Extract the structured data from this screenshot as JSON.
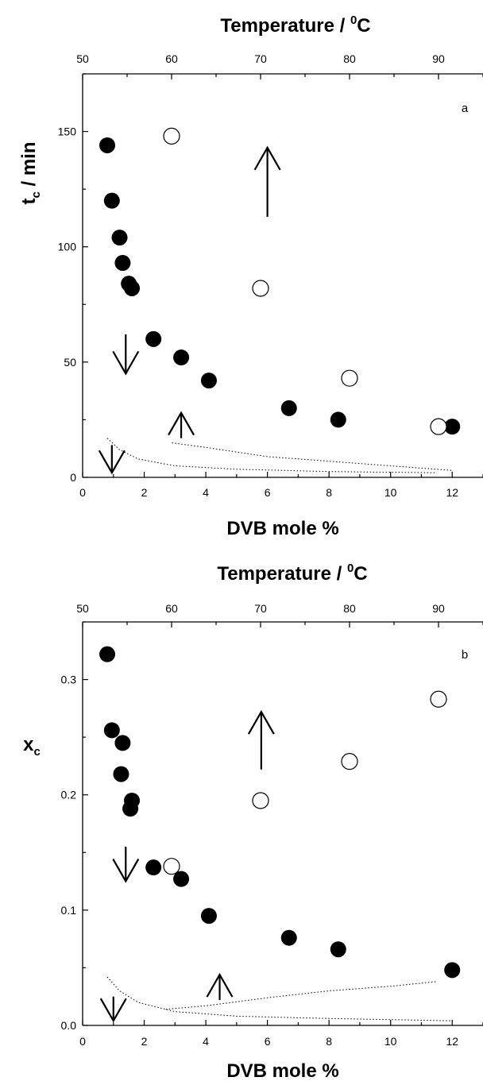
{
  "chart_data": [
    {
      "type": "scatter",
      "panel_label": "a",
      "title": "Temperature /  0C",
      "top_axis": {
        "label_main": "Temperature /  ",
        "label_sup": "0",
        "label_unit": "C",
        "range": [
          50,
          95
        ],
        "ticks": [
          "50",
          "60",
          "70",
          "80",
          "90"
        ]
      },
      "xlabel": "DVB mole %",
      "ylabel_main": "t",
      "ylabel_sub": "c",
      "ylabel_rest": "  /  min",
      "xlim": [
        0,
        13
      ],
      "ylim": [
        0,
        175
      ],
      "xticks": [
        "0",
        "2",
        "4",
        "6",
        "8",
        "10",
        "12"
      ],
      "yticks": [
        "0",
        "50",
        "100",
        "150"
      ],
      "series": [
        {
          "marker": "filled-circle",
          "axis": "bottom",
          "points": [
            [
              0.8,
              144
            ],
            [
              0.95,
              120
            ],
            [
              1.2,
              104
            ],
            [
              1.3,
              93
            ],
            [
              1.5,
              84
            ],
            [
              1.6,
              82
            ],
            [
              2.3,
              60
            ],
            [
              3.2,
              52
            ],
            [
              4.1,
              42
            ],
            [
              6.7,
              30
            ],
            [
              8.3,
              25
            ],
            [
              12.0,
              22
            ]
          ]
        },
        {
          "marker": "open-circle",
          "axis": "top",
          "points": [
            [
              60,
              148
            ],
            [
              70,
              82
            ],
            [
              80,
              43
            ],
            [
              90,
              22
            ]
          ]
        }
      ],
      "dotted_lines": [
        [
          [
            0.8,
            17
          ],
          [
            1.2,
            12
          ],
          [
            1.8,
            8
          ],
          [
            3,
            5
          ],
          [
            5,
            3.5
          ],
          [
            8,
            2.5
          ],
          [
            11.5,
            2
          ]
        ],
        [
          [
            2.9,
            15
          ],
          [
            4,
            13
          ],
          [
            6,
            9
          ],
          [
            8,
            7
          ],
          [
            10,
            5
          ],
          [
            12,
            3
          ]
        ]
      ],
      "arrows": [
        {
          "direction": "down",
          "at": [
            1.4,
            62,
            45
          ]
        },
        {
          "direction": "up",
          "at": [
            6.0,
            113,
            143
          ]
        },
        {
          "direction": "down",
          "at": [
            0.95,
            14,
            2
          ]
        },
        {
          "direction": "up",
          "at": [
            3.2,
            17,
            28
          ]
        }
      ]
    },
    {
      "type": "scatter",
      "panel_label": "b",
      "title": "Temperature /  0C",
      "top_axis": {
        "label_main": "Temperature /  ",
        "label_sup": "0",
        "label_unit": "C",
        "range": [
          50,
          95
        ],
        "ticks": [
          "50",
          "60",
          "70",
          "80",
          "90"
        ]
      },
      "xlabel": "DVB mole %",
      "ylabel_main": "x",
      "ylabel_sub": "c",
      "ylabel_rest": "",
      "xlim": [
        0,
        13
      ],
      "ylim": [
        0,
        0.35
      ],
      "xticks": [
        "0",
        "2",
        "4",
        "6",
        "8",
        "10",
        "12"
      ],
      "yticks": [
        "0.0",
        "0.1",
        "0.2",
        "0.3"
      ],
      "series": [
        {
          "marker": "filled-circle",
          "axis": "bottom",
          "points": [
            [
              0.8,
              0.322
            ],
            [
              0.95,
              0.256
            ],
            [
              1.3,
              0.245
            ],
            [
              1.25,
              0.218
            ],
            [
              1.6,
              0.195
            ],
            [
              1.55,
              0.188
            ],
            [
              2.3,
              0.137
            ],
            [
              3.2,
              0.127
            ],
            [
              4.1,
              0.095
            ],
            [
              6.7,
              0.076
            ],
            [
              8.3,
              0.066
            ],
            [
              12.0,
              0.048
            ]
          ]
        },
        {
          "marker": "open-circle",
          "axis": "top",
          "points": [
            [
              60,
              0.138
            ],
            [
              70,
              0.195
            ],
            [
              80,
              0.229
            ],
            [
              90,
              0.283
            ]
          ]
        }
      ],
      "dotted_lines": [
        [
          [
            0.8,
            0.042
          ],
          [
            1.2,
            0.03
          ],
          [
            1.8,
            0.02
          ],
          [
            3,
            0.012
          ],
          [
            5,
            0.008
          ],
          [
            8,
            0.006
          ],
          [
            12,
            0.004
          ]
        ],
        [
          [
            2.7,
            0.014
          ],
          [
            4,
            0.017
          ],
          [
            6,
            0.024
          ],
          [
            8,
            0.03
          ],
          [
            10,
            0.034
          ],
          [
            11.5,
            0.038
          ]
        ]
      ],
      "arrows": [
        {
          "direction": "down",
          "at": [
            1.4,
            0.155,
            0.125
          ]
        },
        {
          "direction": "up",
          "at": [
            5.8,
            0.222,
            0.272
          ]
        },
        {
          "direction": "down",
          "at": [
            1.0,
            0.025,
            0.004
          ]
        },
        {
          "direction": "up",
          "at": [
            4.45,
            0.022,
            0.044
          ]
        }
      ]
    }
  ]
}
